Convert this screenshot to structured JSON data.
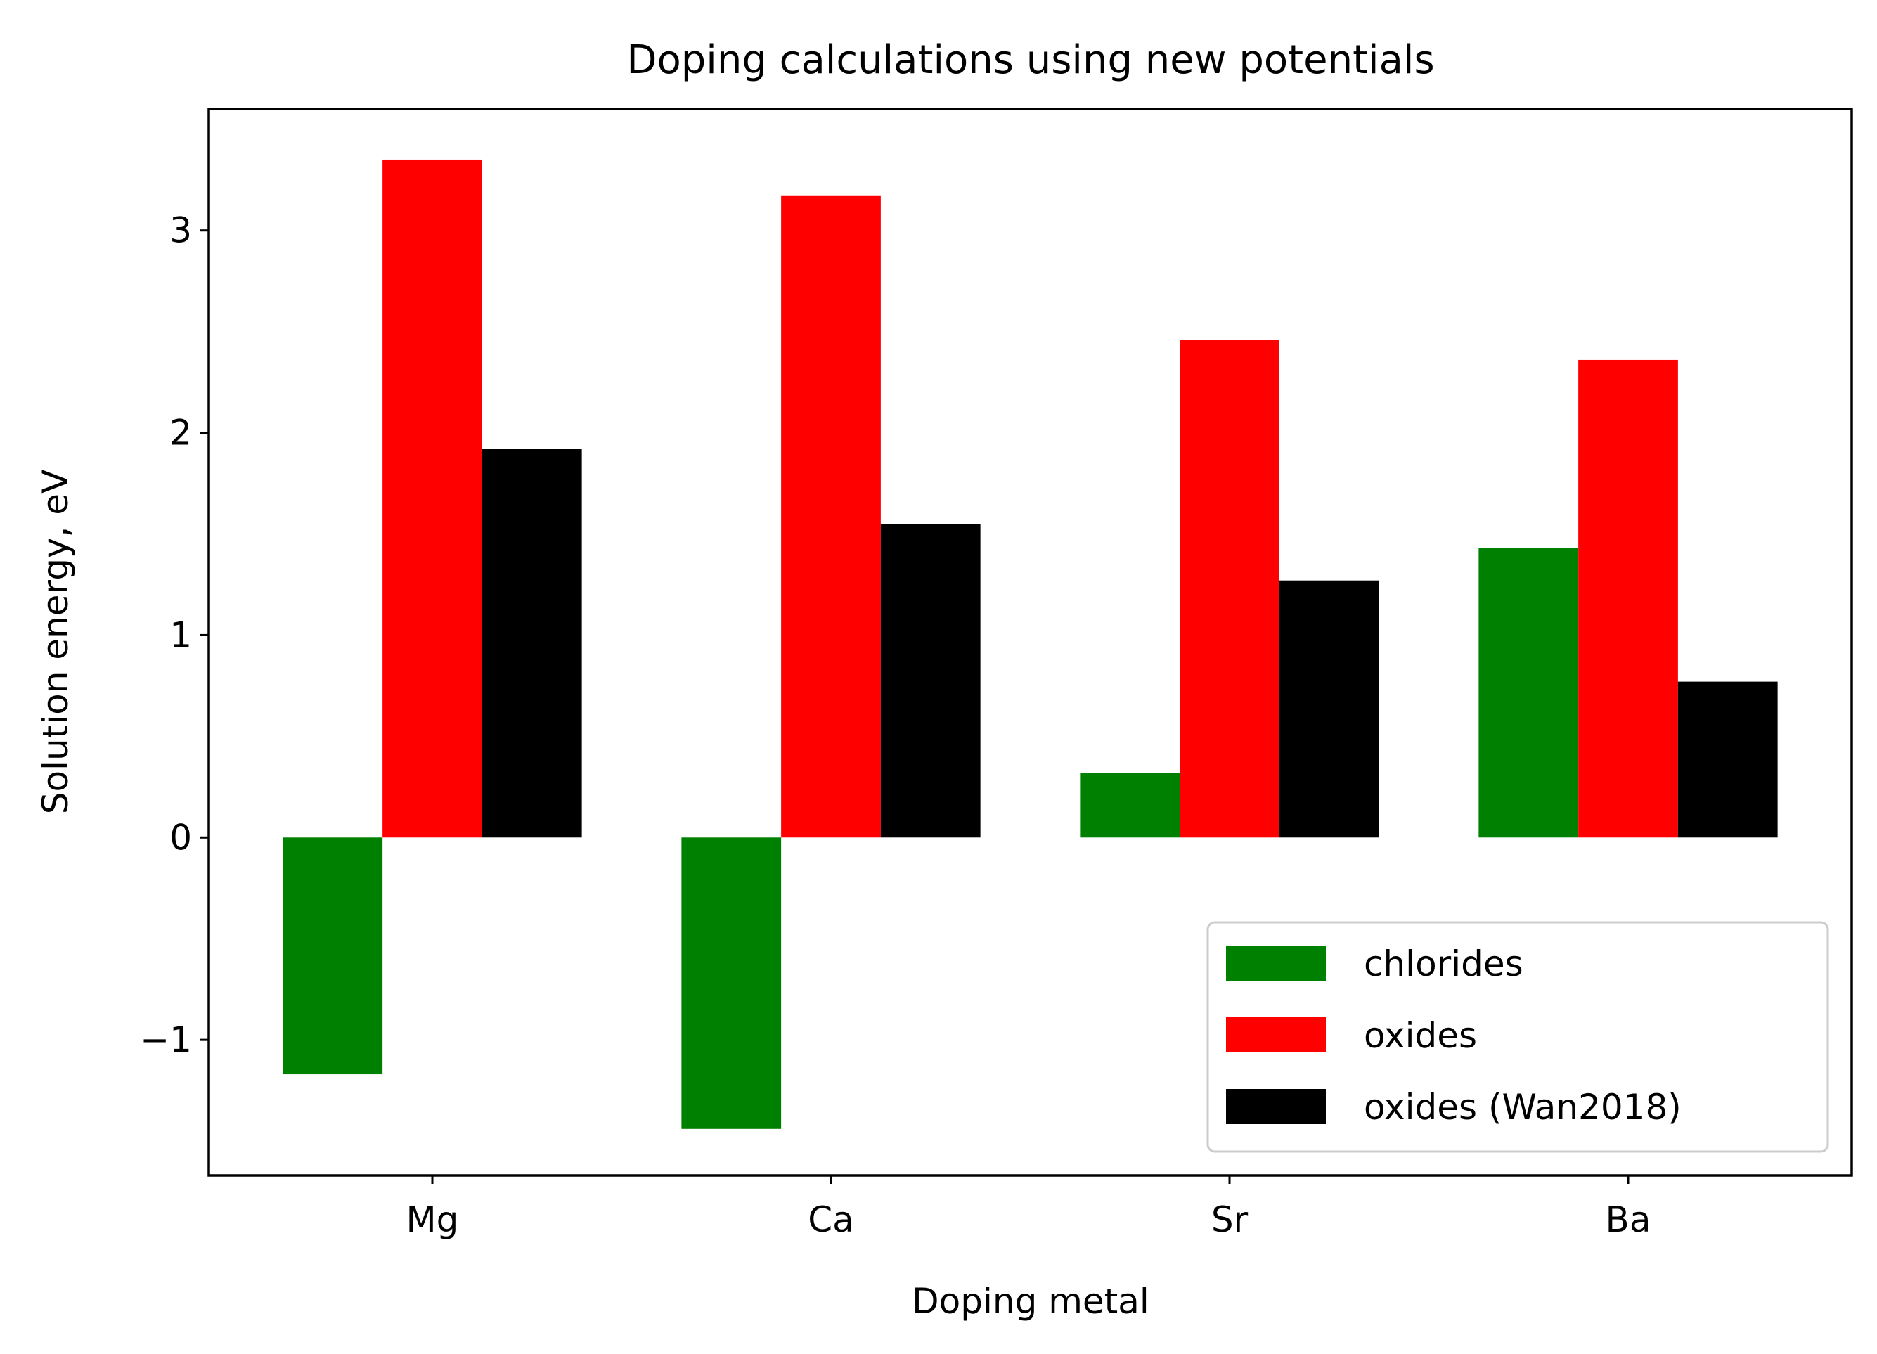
{
  "chart_data": {
    "type": "bar",
    "title": "Doping calculations using new potentials",
    "xlabel": "Doping metal",
    "ylabel": "Solution energy, eV",
    "categories": [
      "Mg",
      "Ca",
      "Sr",
      "Ba"
    ],
    "series": [
      {
        "name": "chlorides",
        "color": "#008000",
        "values": [
          -1.17,
          -1.44,
          0.32,
          1.43
        ]
      },
      {
        "name": "oxides",
        "color": "#ff0000",
        "values": [
          3.35,
          3.17,
          2.46,
          2.36
        ]
      },
      {
        "name": "oxides (Wan2018)",
        "color": "#000000",
        "values": [
          1.92,
          1.55,
          1.27,
          0.77
        ]
      }
    ],
    "ylim": [
      -1.67,
      3.6
    ],
    "yticks": [
      -1,
      0,
      1,
      2,
      3
    ],
    "ytick_labels": [
      "−1",
      "0",
      "1",
      "2",
      "3"
    ],
    "grid": false,
    "legend_position": "lower right"
  }
}
